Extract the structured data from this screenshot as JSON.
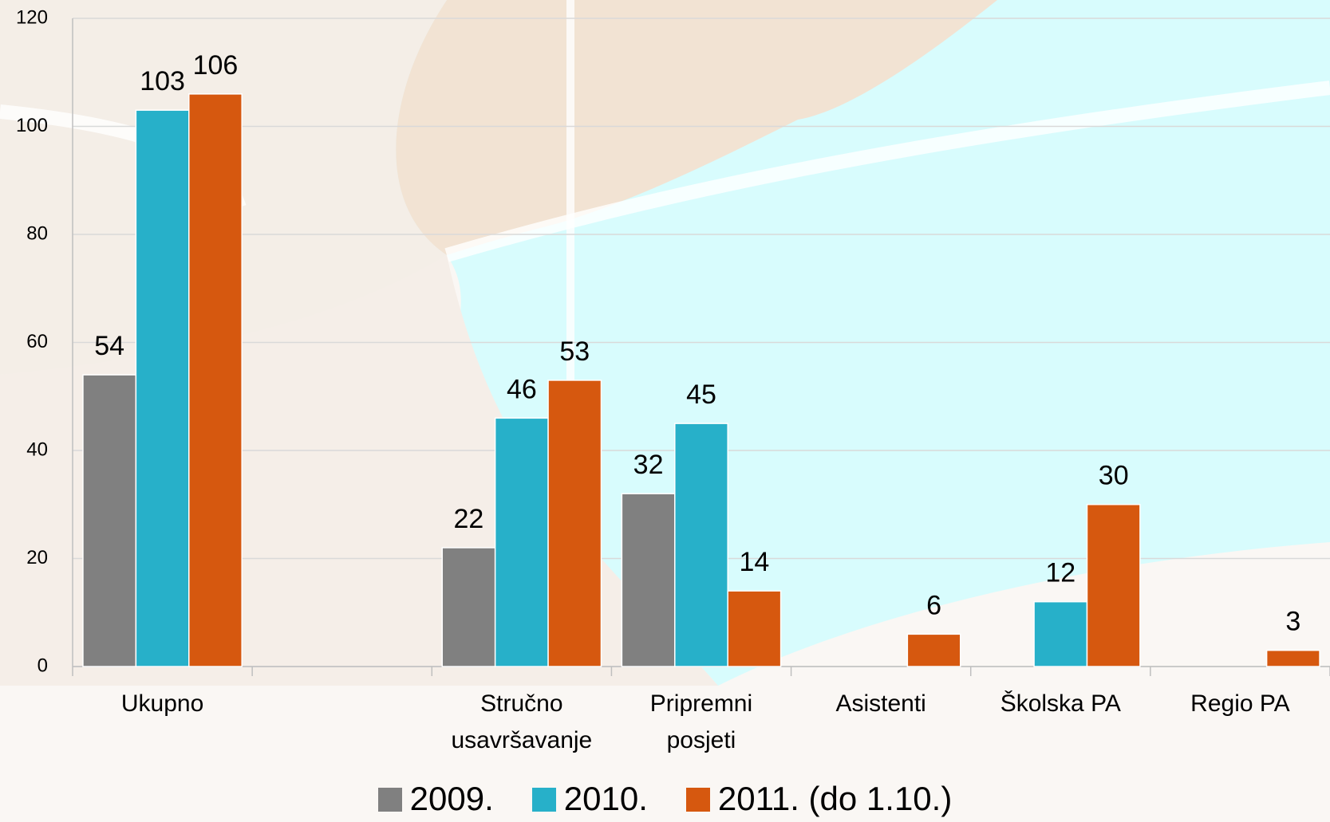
{
  "chart_data": {
    "type": "bar",
    "categories": [
      "Ukupno",
      null,
      "Stručno\nusavršavanje",
      "Pripremni\nposjeti",
      "Asistenti",
      "Školska PA",
      "Regio PA"
    ],
    "series": [
      {
        "name": "2009.",
        "color": "#808080",
        "values": [
          54,
          null,
          22,
          32,
          null,
          null,
          null
        ]
      },
      {
        "name": "2010.",
        "color": "#27b0c9",
        "values": [
          103,
          null,
          46,
          45,
          null,
          12,
          null
        ]
      },
      {
        "name": "2011. (do 1.10.)",
        "color": "#d6580f",
        "values": [
          106,
          null,
          53,
          14,
          6,
          30,
          3
        ]
      }
    ],
    "ylim": [
      0,
      120
    ],
    "yticks": [
      0,
      20,
      40,
      60,
      80,
      100,
      120
    ],
    "grid": true,
    "legend": "bottom"
  }
}
